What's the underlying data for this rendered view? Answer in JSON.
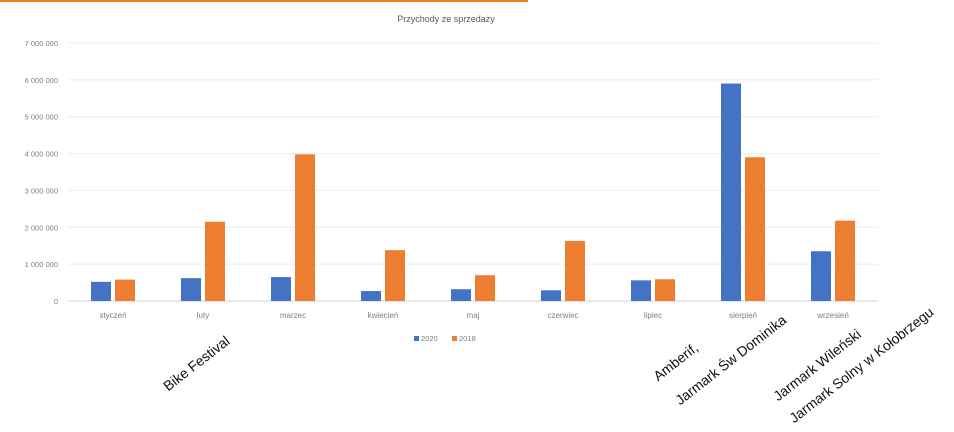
{
  "chart_data": {
    "type": "bar",
    "title": "Przychody  ze sprzedaży",
    "categories": [
      "styczeń",
      "luty",
      "marzec",
      "kwiecień",
      "maj",
      "czerwiec",
      "lipiec",
      "sierpień",
      "wrzesień"
    ],
    "series": [
      {
        "name": "2020",
        "color": "#4472c4",
        "values": [
          520000,
          620000,
          650000,
          270000,
          320000,
          290000,
          560000,
          5900000,
          1350000
        ]
      },
      {
        "name": "2018",
        "color": "#ed7d31",
        "values": [
          580000,
          2150000,
          3980000,
          1380000,
          700000,
          1630000,
          590000,
          3900000,
          2180000
        ]
      }
    ],
    "ylim": [
      0,
      7000000
    ],
    "yticks": [
      0,
      1000000,
      2000000,
      3000000,
      4000000,
      5000000,
      6000000,
      7000000
    ],
    "ytick_labels": [
      "0",
      "1 000 000",
      "2 000 000",
      "3 000 000",
      "4 000 000",
      "5 000 000",
      "6 000 000",
      "7 000 000"
    ],
    "grid": true,
    "legend_position": "bottom"
  },
  "annotations": [
    {
      "text": "Bike Festival"
    },
    {
      "text": "Amberif,"
    },
    {
      "text": "Jarmark Św Dominika"
    },
    {
      "text": "Jarmark Wileński"
    },
    {
      "text": "Jarmark Solny w Kołobrzegu"
    }
  ]
}
